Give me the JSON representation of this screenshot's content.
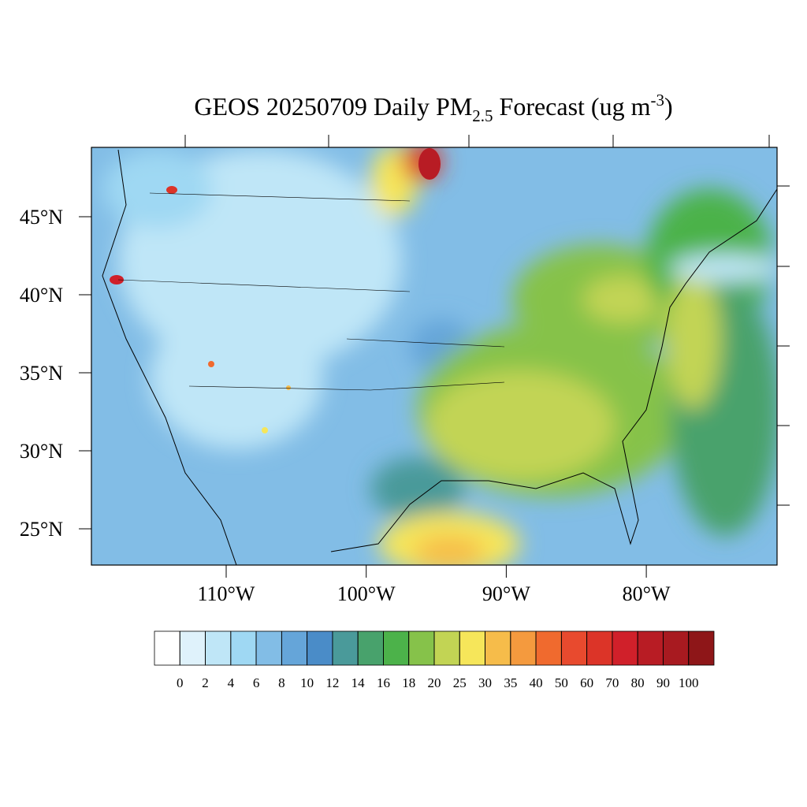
{
  "title": [
    "GEOS 20250709 Daily PM",
    "2.5",
    " Forecast (ug m",
    "-3",
    ")"
  ],
  "lat_ticks": [
    {
      "value": 45,
      "label": "45°N"
    },
    {
      "value": 40,
      "label": "40°N"
    },
    {
      "value": 35,
      "label": "35°N"
    },
    {
      "value": 30,
      "label": "30°N"
    },
    {
      "value": 25,
      "label": "25°N"
    }
  ],
  "lon_ticks": [
    {
      "value": -110,
      "label": "110°W"
    },
    {
      "value": -100,
      "label": "100°W"
    },
    {
      "value": -90,
      "label": "90°W"
    },
    {
      "value": -80,
      "label": "80°W"
    }
  ],
  "colorbar": {
    "levels": [
      0,
      2,
      4,
      6,
      8,
      10,
      12,
      14,
      16,
      18,
      20,
      25,
      30,
      35,
      40,
      50,
      60,
      70,
      80,
      90,
      100
    ],
    "colors": [
      "#ffffff",
      "#dff2fb",
      "#bfe6f7",
      "#9fd8f3",
      "#82bde6",
      "#65a5d9",
      "#4a8cc8",
      "#4a9a9a",
      "#48a26c",
      "#4cb24a",
      "#86c24a",
      "#c2d454",
      "#f6e65a",
      "#f6bc4a",
      "#f49a3e",
      "#f06a2e",
      "#e84a2e",
      "#dc3428",
      "#d0202a",
      "#b81c24",
      "#a81a20",
      "#8e1618"
    ]
  }
}
